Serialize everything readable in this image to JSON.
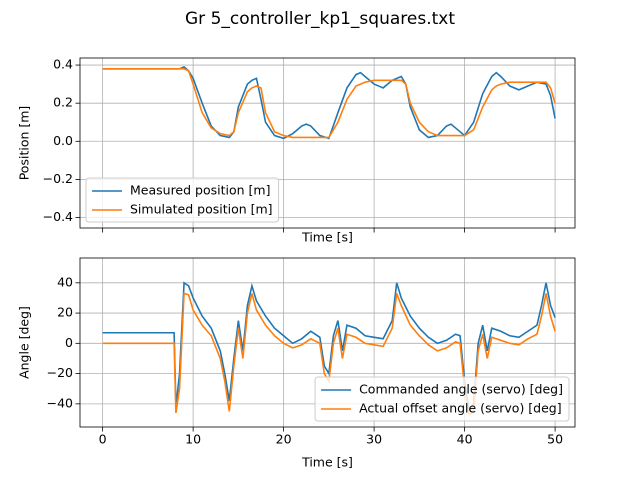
{
  "title": "Gr 5_controller_kp1_squares.txt",
  "chart_data": [
    {
      "type": "line",
      "xlabel": "Time [s]",
      "ylabel": "Position [m]",
      "grid": true,
      "legend": "lower left",
      "xlim": [
        -2.5,
        52.2
      ],
      "xticks": [
        0,
        10,
        20,
        30,
        40,
        50
      ],
      "show_xtick_labels": false,
      "ylim": [
        -0.455,
        0.437
      ],
      "yticks": [
        {
          "value": -0.4,
          "label": "−0.4"
        },
        {
          "value": -0.2,
          "label": "−0.2"
        },
        {
          "value": 0,
          "label": "0.0"
        },
        0.2,
        0.4
      ],
      "x": [
        0,
        8,
        8.5,
        9,
        9.5,
        10,
        11,
        12,
        13,
        14,
        14.5,
        15,
        16,
        16.5,
        17,
        17.5,
        18,
        19,
        20,
        21,
        22,
        22.5,
        23,
        24,
        25,
        26,
        27,
        28,
        28.5,
        29,
        30,
        31,
        32,
        33,
        33.5,
        34,
        35,
        36,
        37,
        38,
        38.5,
        39,
        40,
        41,
        42,
        43,
        43.5,
        44,
        45,
        46,
        47,
        48,
        49,
        49.5,
        50
      ],
      "series": [
        {
          "name": "Measured position [m]",
          "color": "#1f77b4",
          "values": [
            0.38,
            0.38,
            0.38,
            0.39,
            0.37,
            0.33,
            0.2,
            0.08,
            0.03,
            0.02,
            0.05,
            0.18,
            0.3,
            0.32,
            0.33,
            0.22,
            0.1,
            0.03,
            0.015,
            0.04,
            0.08,
            0.09,
            0.08,
            0.03,
            0.015,
            0.15,
            0.28,
            0.35,
            0.36,
            0.34,
            0.3,
            0.28,
            0.32,
            0.34,
            0.3,
            0.18,
            0.06,
            0.02,
            0.03,
            0.08,
            0.09,
            0.07,
            0.03,
            0.1,
            0.25,
            0.34,
            0.36,
            0.34,
            0.29,
            0.27,
            0.29,
            0.31,
            0.3,
            0.24,
            0.12
          ]
        },
        {
          "name": "Simulated position [m]",
          "color": "#ff7f0e",
          "values": [
            0.38,
            0.38,
            0.38,
            0.38,
            0.37,
            0.3,
            0.15,
            0.07,
            0.04,
            0.03,
            0.05,
            0.15,
            0.26,
            0.28,
            0.29,
            0.28,
            0.15,
            0.05,
            0.03,
            0.02,
            0.02,
            0.02,
            0.02,
            0.02,
            0.02,
            0.1,
            0.22,
            0.29,
            0.3,
            0.31,
            0.32,
            0.32,
            0.32,
            0.32,
            0.3,
            0.2,
            0.1,
            0.05,
            0.03,
            0.03,
            0.03,
            0.03,
            0.03,
            0.06,
            0.18,
            0.27,
            0.29,
            0.3,
            0.31,
            0.31,
            0.31,
            0.31,
            0.31,
            0.28,
            0.2
          ]
        }
      ]
    },
    {
      "type": "line",
      "xlabel": "Time [s]",
      "ylabel": "Angle [deg]",
      "grid": true,
      "legend": "lower right",
      "xlim": [
        -2.5,
        52.2
      ],
      "xticks": [
        0,
        10,
        20,
        30,
        40,
        50
      ],
      "show_xtick_labels": true,
      "ylim": [
        -55.3,
        56.4
      ],
      "yticks": [
        {
          "value": -40,
          "label": "−40"
        },
        {
          "value": -20,
          "label": "−20"
        },
        0,
        20,
        40
      ],
      "x": [
        0,
        7.9,
        8.1,
        8.5,
        9,
        9.5,
        10,
        11,
        12,
        13,
        13.5,
        14,
        14.5,
        15,
        15.5,
        16,
        16.5,
        17,
        18,
        19,
        20,
        21,
        22,
        23,
        24,
        24.5,
        25,
        25.5,
        26,
        26.5,
        27,
        28,
        29,
        30,
        31,
        32,
        32.5,
        33,
        34,
        35,
        36,
        37,
        38,
        39,
        39.5,
        40,
        40.5,
        41,
        41.5,
        42,
        42.5,
        43,
        44,
        45,
        46,
        47,
        48,
        48.5,
        49,
        49.5,
        50
      ],
      "series": [
        {
          "name": "Commanded angle (servo) [deg]",
          "color": "#1f77b4",
          "values": [
            7,
            7,
            -42,
            -20,
            40,
            38,
            30,
            18,
            10,
            -5,
            -20,
            -38,
            -10,
            15,
            -5,
            25,
            38,
            28,
            18,
            10,
            5,
            0,
            3,
            8,
            4,
            -15,
            -20,
            5,
            15,
            -5,
            12,
            10,
            5,
            4,
            3,
            15,
            40,
            30,
            18,
            10,
            4,
            0,
            2,
            6,
            5,
            -25,
            -45,
            -40,
            0,
            12,
            -5,
            10,
            8,
            5,
            4,
            8,
            12,
            25,
            40,
            25,
            17
          ]
        },
        {
          "name": "Actual offset angle (servo) [deg]",
          "color": "#ff7f0e",
          "values": [
            0,
            0,
            -46,
            -30,
            33,
            32,
            22,
            12,
            5,
            -10,
            -25,
            -45,
            -15,
            10,
            -10,
            20,
            33,
            22,
            12,
            5,
            0,
            -3,
            -1,
            3,
            0,
            -20,
            -25,
            0,
            10,
            -10,
            6,
            4,
            0,
            -1,
            -2,
            10,
            33,
            25,
            12,
            5,
            -1,
            -5,
            -3,
            1,
            0,
            -30,
            -47,
            -45,
            -5,
            6,
            -10,
            4,
            2,
            0,
            -1,
            3,
            6,
            18,
            33,
            18,
            8
          ]
        }
      ]
    }
  ]
}
